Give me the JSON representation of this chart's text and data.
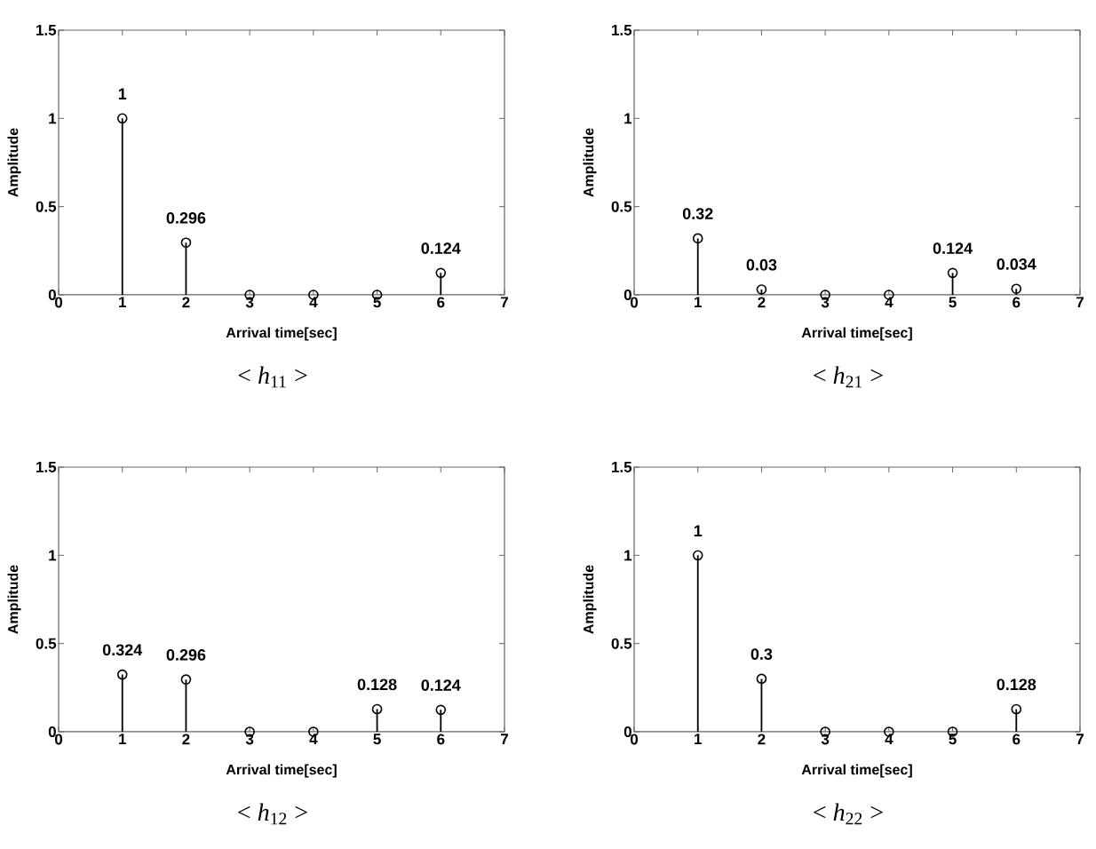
{
  "chart_data": [
    {
      "type": "lollipop",
      "x": [
        1,
        2,
        3,
        4,
        5,
        6
      ],
      "values": [
        1,
        0.296,
        0,
        0,
        0,
        0.124
      ],
      "value_labels": [
        "1",
        "0.296",
        null,
        null,
        null,
        "0.124"
      ],
      "color": "#000000",
      "marker": "circle",
      "xlabel": "Arrival time[sec]",
      "ylabel": "Amplitude",
      "annotations": [
        "< *h*$_{11}$ >"
      ],
      "xlim": [
        0,
        7
      ],
      "ylim": [
        0,
        1.5
      ],
      "xticks": [
        0,
        1,
        2,
        3,
        4,
        5,
        6,
        7
      ],
      "yticks": [
        0,
        0.5,
        1,
        1.5
      ]
    },
    {
      "type": "lollipop",
      "x": [
        1,
        2,
        3,
        4,
        5,
        6
      ],
      "values": [
        0.32,
        0.03,
        0,
        0,
        0.124,
        0.034
      ],
      "value_labels": [
        "0.32",
        "0.03",
        null,
        null,
        "0.124",
        "0.034"
      ],
      "color": "#000000",
      "marker": "circle",
      "xlabel": "Arrival time[sec]",
      "ylabel": "Amplitude",
      "annotations": [
        "< *h*$_{21}$ >"
      ],
      "xlim": [
        0,
        7
      ],
      "ylim": [
        0,
        1.5
      ],
      "xticks": [
        0,
        1,
        2,
        3,
        4,
        5,
        6,
        7
      ],
      "yticks": [
        0,
        0.5,
        1,
        1.5
      ]
    },
    {
      "type": "lollipop",
      "x": [
        1,
        2,
        3,
        4,
        5,
        6
      ],
      "values": [
        0.324,
        0.296,
        0,
        0,
        0.128,
        0.124
      ],
      "value_labels": [
        "0.324",
        "0.296",
        null,
        null,
        "0.128",
        "0.124"
      ],
      "color": "#000000",
      "marker": "circle",
      "xlabel": "Arrival time[sec]",
      "ylabel": "Amplitude",
      "annotations": [
        "< *h*$_{12}$ >"
      ],
      "xlim": [
        0,
        7
      ],
      "ylim": [
        0,
        1.5
      ],
      "xticks": [
        0,
        1,
        2,
        3,
        4,
        5,
        6,
        7
      ],
      "yticks": [
        0,
        0.5,
        1,
        1.5
      ]
    },
    {
      "type": "lollipop",
      "x": [
        1,
        2,
        3,
        4,
        5,
        6
      ],
      "values": [
        1,
        0.3,
        0,
        0,
        0,
        0.128
      ],
      "value_labels": [
        "1",
        "0.3",
        null,
        null,
        null,
        "0.128"
      ],
      "color": "#000000",
      "marker": "circle",
      "xlabel": "Arrival time[sec]",
      "ylabel": "Amplitude",
      "annotations": [
        "< *h*$_{22}$ >"
      ],
      "xlim": [
        0,
        7
      ],
      "ylim": [
        0,
        1.5
      ],
      "xticks": [
        0,
        1,
        2,
        3,
        4,
        5,
        6,
        7
      ],
      "yticks": [
        0,
        0.5,
        1,
        1.5
      ]
    }
  ]
}
